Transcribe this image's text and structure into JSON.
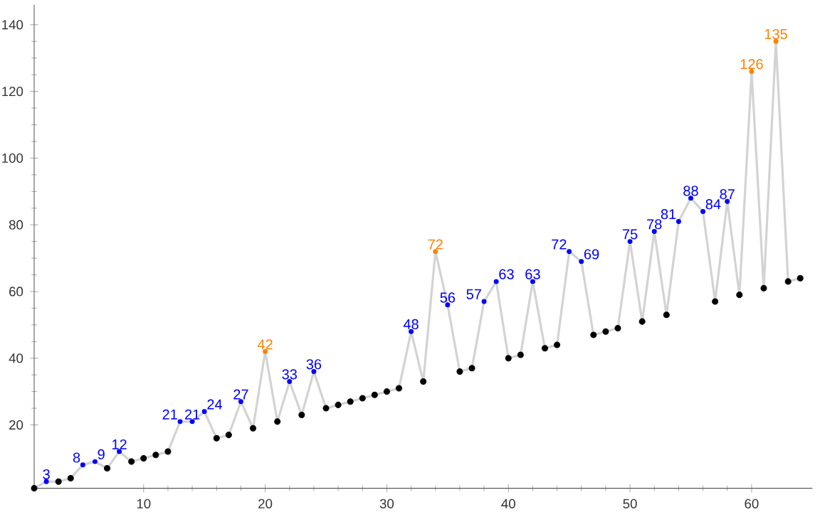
{
  "chart_data": {
    "type": "line",
    "x": [
      1,
      2,
      3,
      4,
      5,
      6,
      7,
      8,
      9,
      10,
      11,
      12,
      13,
      14,
      15,
      16,
      17,
      18,
      19,
      20,
      21,
      22,
      23,
      24,
      25,
      26,
      27,
      28,
      29,
      30,
      31,
      32,
      33,
      34,
      35,
      36,
      37,
      38,
      39,
      40,
      41,
      42,
      43,
      44,
      45,
      46,
      47,
      48,
      49,
      50,
      51,
      52,
      53,
      54,
      55,
      56,
      57,
      58,
      59,
      60,
      61,
      62,
      63,
      64
    ],
    "xlim": [
      1,
      65
    ],
    "ylim": [
      1,
      146
    ],
    "xticks": [
      10,
      20,
      30,
      40,
      50,
      60
    ],
    "yticks": [
      20,
      40,
      60,
      80,
      100,
      120,
      140
    ],
    "series": [
      {
        "color": "#d3d3d3",
        "marker": "none",
        "values": [
          1,
          3,
          3,
          4,
          8,
          9,
          7,
          12,
          9,
          10,
          11,
          12,
          21,
          21,
          24,
          16,
          17,
          27,
          19,
          42,
          21,
          33,
          23,
          36,
          25,
          26,
          27,
          28,
          29,
          30,
          31,
          48,
          33,
          72,
          56,
          36,
          37,
          57,
          63,
          40,
          41,
          63,
          43,
          44,
          72,
          69,
          47,
          48,
          49,
          75,
          51,
          78,
          53,
          81,
          88,
          84,
          57,
          87,
          59,
          126,
          61,
          135,
          63,
          64
        ]
      },
      {
        "type": "scatter",
        "marker": "circle",
        "values": [
          1,
          3,
          3,
          4,
          8,
          9,
          7,
          12,
          9,
          10,
          11,
          12,
          21,
          21,
          24,
          16,
          17,
          27,
          19,
          42,
          21,
          33,
          23,
          36,
          25,
          26,
          27,
          28,
          29,
          30,
          31,
          48,
          33,
          72,
          56,
          36,
          37,
          57,
          63,
          40,
          41,
          63,
          43,
          44,
          72,
          69,
          47,
          48,
          49,
          75,
          51,
          78,
          53,
          81,
          88,
          84,
          57,
          87,
          59,
          126,
          61,
          135,
          63,
          64
        ],
        "colors": [
          "#000000",
          "#0000ff",
          "#000000",
          "#000000",
          "#0000ff",
          "#0000ff",
          "#000000",
          "#0000ff",
          "#000000",
          "#000000",
          "#000000",
          "#000000",
          "#0000ff",
          "#0000ff",
          "#0000ff",
          "#000000",
          "#000000",
          "#0000ff",
          "#000000",
          "#ff8000",
          "#000000",
          "#0000ff",
          "#000000",
          "#0000ff",
          "#000000",
          "#000000",
          "#000000",
          "#000000",
          "#000000",
          "#000000",
          "#000000",
          "#0000ff",
          "#000000",
          "#ff8000",
          "#0000ff",
          "#000000",
          "#000000",
          "#0000ff",
          "#0000ff",
          "#000000",
          "#000000",
          "#0000ff",
          "#000000",
          "#000000",
          "#0000ff",
          "#0000ff",
          "#000000",
          "#000000",
          "#000000",
          "#0000ff",
          "#000000",
          "#0000ff",
          "#000000",
          "#0000ff",
          "#0000ff",
          "#0000ff",
          "#000000",
          "#0000ff",
          "#000000",
          "#ff8000",
          "#000000",
          "#ff8000",
          "#000000",
          "#000000"
        ],
        "value_labels": [
          null,
          "3",
          null,
          null,
          "8",
          "9",
          null,
          "12",
          null,
          null,
          null,
          null,
          "21",
          "21",
          "24",
          null,
          null,
          "27",
          null,
          "42",
          null,
          "33",
          null,
          "36",
          null,
          null,
          null,
          null,
          null,
          null,
          null,
          "48",
          null,
          "72",
          "56",
          null,
          null,
          "57",
          "63",
          null,
          null,
          "63",
          null,
          null,
          "72",
          "69",
          null,
          null,
          null,
          "75",
          null,
          "78",
          null,
          "81",
          "88",
          "84",
          null,
          "87",
          null,
          "126",
          null,
          "135",
          null,
          null
        ]
      }
    ]
  }
}
